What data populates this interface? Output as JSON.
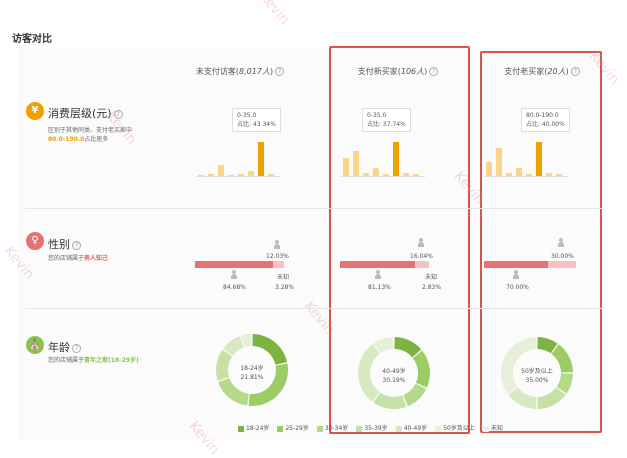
{
  "title": "访客对比",
  "columns": [
    {
      "label_prefix": "未支付访客(",
      "count": "8,017人",
      "label_suffix": ")"
    },
    {
      "label_prefix": "支付新买家(",
      "count": "106人",
      "label_suffix": ")"
    },
    {
      "label_prefix": "支付老买家(",
      "count": "20人",
      "label_suffix": ")"
    }
  ],
  "rows": {
    "spend": {
      "icon": "¥",
      "icon_name": "yen-icon",
      "title": "消费层级(元)",
      "desc_line1": "区别于其他同类、支付老买家中",
      "desc_highlight": "80.0-190.0",
      "desc_line2": "占比居多",
      "tooltips": [
        {
          "range": "0-35.0",
          "ratio": "占比: 43.34%"
        },
        {
          "range": "0-35.0",
          "ratio": "占比: 37.74%"
        },
        {
          "range": "80.0-190.0",
          "ratio": "占比: 40.00%"
        }
      ],
      "bar_values": [
        [
          2,
          4,
          20,
          2,
          3,
          8,
          60,
          4
        ],
        [
          16,
          22,
          3,
          7,
          2,
          30,
          3,
          2
        ],
        [
          12,
          25,
          3,
          7,
          2,
          30,
          3,
          2
        ]
      ]
    },
    "gender": {
      "icon": "♀",
      "icon_name": "gender-icon",
      "title": "性别",
      "desc_prefix": "您的店铺属于",
      "desc_highlight": "男人知己",
      "cols": [
        {
          "female": "12.03%",
          "male": "84.68%",
          "unknown_label": "未知",
          "unknown": "3.28%",
          "male_share": 0.8468,
          "female_share": 0.1203
        },
        {
          "female": "16.04%",
          "male": "81.13%",
          "unknown_label": "未知",
          "unknown": "2.83%",
          "male_share": 0.8113,
          "female_share": 0.1604
        },
        {
          "female": "30.00%",
          "male": "70.00%",
          "unknown_label": "",
          "unknown": "",
          "male_share": 0.7,
          "female_share": 0.3
        }
      ]
    },
    "age": {
      "icon": "⛪",
      "icon_name": "age-icon",
      "title": "年龄",
      "desc_prefix": "您的店铺属于",
      "desc_highlight": "青年之家(18-29岁)",
      "cols": [
        {
          "label": "18-24岁",
          "value": "21.81%",
          "slices": [
            21.81,
            30,
            18,
            15,
            10,
            5.19
          ]
        },
        {
          "label": "40-49岁",
          "value": "30.19%",
          "slices": [
            14,
            18,
            12,
            16,
            30.19,
            9.81
          ]
        },
        {
          "label": "50岁及以上",
          "value": "35.00%",
          "slices": [
            10,
            15,
            10,
            15,
            15,
            35
          ]
        }
      ],
      "legend": [
        {
          "label": "18-24岁",
          "color": "#7cb342"
        },
        {
          "label": "25-29岁",
          "color": "#9ccc65"
        },
        {
          "label": "30-34岁",
          "color": "#b5d98a"
        },
        {
          "label": "35-39岁",
          "color": "#c5e1a5"
        },
        {
          "label": "40-49岁",
          "color": "#d7e9c0"
        },
        {
          "label": "50岁及以上",
          "color": "#e6f0d8"
        },
        {
          "label": "未知",
          "color": "#f0f0f0"
        }
      ]
    }
  },
  "watermark": "Kevin",
  "colors": {
    "highlight_border": "#d9534f",
    "orange": "#f0a000",
    "bar_light": "#f9d58a",
    "pink": "#e57373"
  }
}
